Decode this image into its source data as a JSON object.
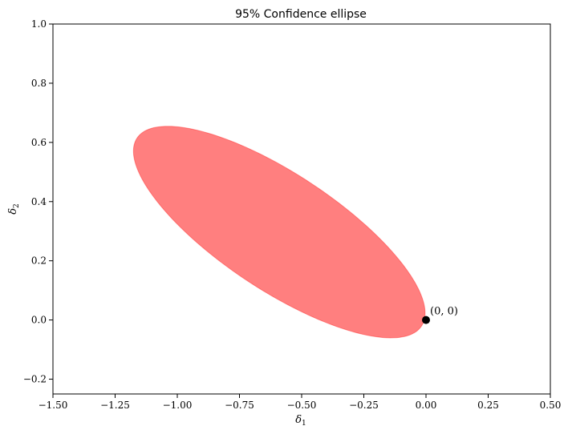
{
  "chart_data": {
    "type": "scatter",
    "title": "95% Confidence ellipse",
    "xlabel": "δ",
    "xlabel_sub": "1",
    "ylabel": "δ",
    "ylabel_sub": "2",
    "xlim": [
      -1.5,
      0.5
    ],
    "ylim": [
      -0.25,
      1.0
    ],
    "xticks": [
      -1.5,
      -1.25,
      -1.0,
      -0.75,
      -0.5,
      -0.25,
      0.0,
      0.25,
      0.5
    ],
    "xtick_labels": [
      "−1.50",
      "−1.25",
      "−1.00",
      "−0.75",
      "−0.50",
      "−0.25",
      "0.00",
      "0.25",
      "0.50"
    ],
    "yticks": [
      -0.2,
      0.0,
      0.2,
      0.4,
      0.6,
      0.8,
      1.0
    ],
    "ytick_labels": [
      "−0.2",
      "0.0",
      "0.2",
      "0.4",
      "0.6",
      "0.8",
      "1.0"
    ],
    "grid": false,
    "ellipse": {
      "center": [
        -0.59,
        0.297
      ],
      "axis1_vector": [
        0.565,
        -0.202
      ],
      "axis2_vector": [
        -0.157,
        0.295
      ],
      "fill_color": "#ff0000",
      "opacity": 0.5
    },
    "points": [
      {
        "x": 0.0,
        "y": 0.0,
        "label": "(0, 0)",
        "color": "#000000"
      }
    ]
  }
}
